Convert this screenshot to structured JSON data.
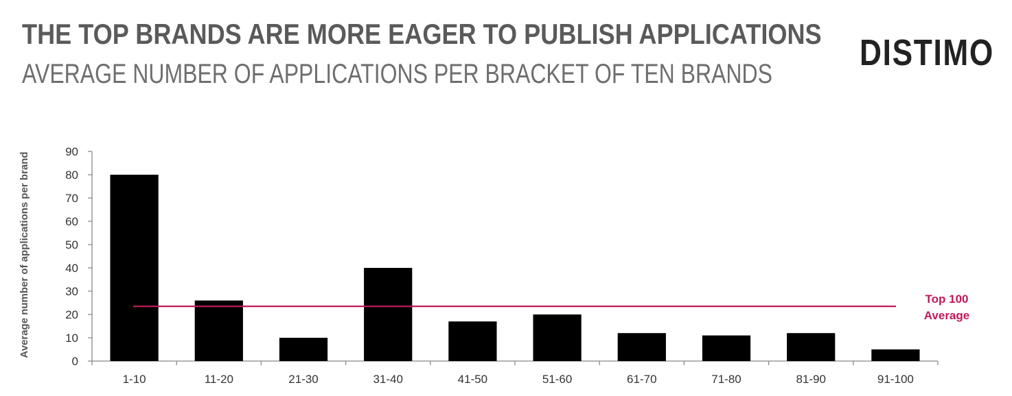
{
  "header": {
    "title": "THE TOP BRANDS ARE MORE EAGER TO PUBLISH APPLICATIONS",
    "subtitle": "AVERAGE NUMBER OF APPLICATIONS PER BRACKET OF TEN BRANDS",
    "logo": "DISTIMO"
  },
  "chart_data": {
    "type": "bar",
    "title": "THE TOP BRANDS ARE MORE EAGER TO PUBLISH APPLICATIONS",
    "subtitle": "AVERAGE NUMBER OF APPLICATIONS PER BRACKET OF TEN BRANDS",
    "categories": [
      "1-10",
      "11-20",
      "21-30",
      "31-40",
      "41-50",
      "51-60",
      "61-70",
      "71-80",
      "81-90",
      "91-100"
    ],
    "values": [
      80,
      26,
      10,
      40,
      17,
      20,
      12,
      11,
      12,
      5
    ],
    "xlabel": "",
    "ylabel": "Average number  of applications per brand",
    "ylim": [
      0,
      90
    ],
    "yticks": [
      0,
      10,
      20,
      30,
      40,
      50,
      60,
      70,
      80,
      90
    ],
    "grid": false,
    "bar_color": "#000000",
    "reference_line": {
      "value": 23.5,
      "label_lines": [
        "Top 100",
        "Average"
      ],
      "color": "#c2185b"
    }
  }
}
